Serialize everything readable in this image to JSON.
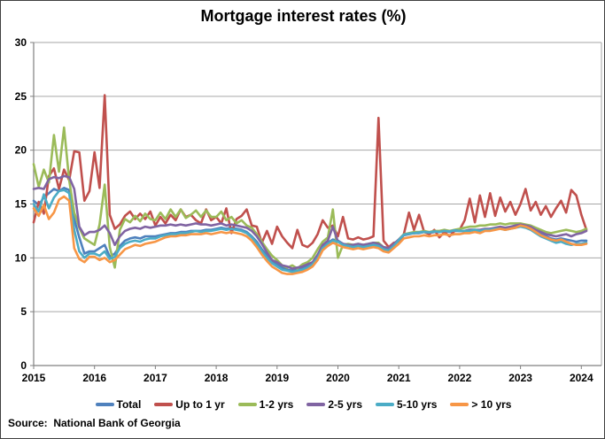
{
  "chart_data": {
    "type": "line",
    "title": "Mortgage interest rates (%)",
    "xlabel": "",
    "ylabel": "",
    "x_start": "2015-01",
    "points_per_year": 12,
    "x_tick_labels": [
      "2015",
      "2016",
      "2017",
      "2018",
      "2019",
      "2020",
      "2021",
      "2022",
      "2023",
      "2024"
    ],
    "y_ticks": [
      0,
      5,
      10,
      15,
      20,
      25,
      30
    ],
    "ylim": [
      0,
      30
    ],
    "grid": "horizontal",
    "legend_position": "bottom",
    "series": [
      {
        "name": "Total",
        "color": "#4F81BD",
        "values": [
          15.3,
          14.9,
          15.6,
          16.0,
          16.4,
          16.2,
          16.5,
          16.3,
          13.6,
          11.9,
          10.4,
          10.6,
          10.6,
          10.9,
          11.2,
          10.1,
          10.4,
          11.1,
          11.6,
          11.8,
          11.9,
          11.8,
          12.0,
          12.0,
          12.0,
          12.1,
          12.2,
          12.3,
          12.3,
          12.4,
          12.4,
          12.5,
          12.5,
          12.5,
          12.6,
          12.6,
          12.7,
          12.8,
          12.7,
          12.8,
          12.7,
          12.6,
          12.4,
          12.0,
          11.5,
          10.8,
          10.2,
          9.7,
          9.4,
          9.1,
          8.9,
          8.8,
          8.9,
          9.0,
          9.2,
          9.5,
          10.2,
          11.0,
          11.4,
          11.7,
          11.6,
          11.3,
          11.2,
          11.1,
          11.2,
          11.1,
          11.2,
          11.3,
          11.2,
          10.9,
          10.8,
          11.2,
          11.6,
          12.1,
          12.2,
          12.3,
          12.3,
          12.4,
          12.3,
          12.4,
          12.4,
          12.5,
          12.4,
          12.5,
          12.5,
          12.5,
          12.6,
          12.6,
          12.5,
          12.6,
          12.7,
          12.7,
          12.8,
          12.7,
          12.8,
          12.9,
          13.0,
          12.9,
          12.7,
          12.4,
          12.2,
          12.0,
          11.8,
          11.7,
          11.8,
          11.7,
          11.6,
          11.5,
          11.6,
          11.6
        ]
      },
      {
        "name": "Up to 1 yr",
        "color": "#C0504D",
        "values": [
          13.3,
          15.2,
          14.1,
          17.6,
          18.3,
          16.4,
          18.2,
          17.2,
          19.9,
          19.8,
          15.3,
          16.2,
          19.8,
          16.5,
          25.1,
          14.0,
          12.7,
          13.1,
          13.9,
          14.3,
          13.6,
          14.1,
          13.6,
          14.3,
          13.0,
          13.8,
          13.2,
          14.0,
          13.5,
          14.5,
          13.8,
          14.0,
          13.5,
          13.2,
          14.5,
          13.5,
          13.8,
          13.2,
          14.6,
          12.3,
          13.6,
          13.9,
          14.5,
          13.0,
          12.9,
          11.4,
          12.5,
          11.3,
          12.9,
          12.0,
          11.4,
          10.9,
          12.6,
          11.2,
          11.0,
          11.4,
          12.2,
          13.5,
          12.8,
          13.0,
          12.0,
          13.8,
          11.8,
          11.7,
          11.9,
          11.7,
          11.8,
          12.0,
          23.0,
          11.6,
          11.0,
          11.4,
          11.5,
          12.2,
          14.2,
          12.6,
          14.0,
          12.4,
          12.2,
          12.6,
          11.9,
          12.4,
          12.0,
          12.5,
          12.6,
          13.5,
          15.5,
          13.3,
          15.8,
          13.8,
          16.0,
          13.9,
          15.6,
          14.3,
          15.2,
          14.0,
          15.0,
          16.4,
          14.4,
          15.2,
          14.0,
          14.8,
          13.8,
          14.6,
          15.3,
          14.2,
          16.3,
          15.8,
          14.0,
          12.6
        ]
      },
      {
        "name": "1-2 yrs",
        "color": "#9BBB59",
        "values": [
          18.7,
          16.6,
          18.2,
          17.0,
          21.4,
          18.0,
          22.1,
          17.2,
          14.2,
          12.8,
          11.8,
          11.5,
          11.2,
          13.1,
          16.8,
          11.0,
          9.1,
          12.6,
          13.6,
          13.3,
          13.9,
          13.4,
          14.1,
          13.6,
          13.5,
          14.2,
          13.6,
          14.5,
          13.8,
          14.5,
          13.7,
          14.0,
          14.4,
          13.8,
          14.4,
          13.8,
          13.8,
          14.3,
          13.5,
          13.8,
          13.2,
          13.5,
          13.0,
          12.8,
          12.2,
          11.5,
          10.8,
          10.2,
          9.8,
          9.3,
          9.1,
          9.3,
          9.0,
          9.4,
          9.6,
          10.0,
          10.8,
          11.5,
          11.9,
          14.5,
          10.0,
          11.2,
          11.3,
          11.2,
          11.3,
          11.2,
          11.3,
          11.4,
          11.4,
          11.0,
          10.9,
          11.2,
          11.7,
          12.2,
          12.3,
          12.4,
          12.4,
          12.5,
          12.4,
          12.5,
          12.5,
          12.6,
          12.5,
          12.6,
          12.7,
          12.8,
          12.9,
          12.9,
          13.0,
          13.0,
          13.1,
          13.1,
          13.2,
          13.1,
          13.2,
          13.2,
          13.2,
          13.1,
          13.0,
          12.8,
          12.6,
          12.4,
          12.3,
          12.4,
          12.5,
          12.6,
          12.5,
          12.4,
          12.5,
          12.7
        ]
      },
      {
        "name": "2-5 yrs",
        "color": "#8064A2",
        "values": [
          16.4,
          16.5,
          16.4,
          17.3,
          17.5,
          17.4,
          17.6,
          17.5,
          16.4,
          12.9,
          12.1,
          12.4,
          12.4,
          12.6,
          13.0,
          12.3,
          11.2,
          12.0,
          12.5,
          12.7,
          12.8,
          12.7,
          12.9,
          12.8,
          12.9,
          13.0,
          13.0,
          13.1,
          13.0,
          13.1,
          13.0,
          13.1,
          13.2,
          13.1,
          13.1,
          13.0,
          13.1,
          13.2,
          13.0,
          13.1,
          13.0,
          12.9,
          12.8,
          12.5,
          12.0,
          11.3,
          10.5,
          9.8,
          9.6,
          9.3,
          9.2,
          9.0,
          9.1,
          9.2,
          9.4,
          9.6,
          10.3,
          11.2,
          11.6,
          12.9,
          11.5,
          11.3,
          11.2,
          11.2,
          11.3,
          11.2,
          11.3,
          11.4,
          11.3,
          11.0,
          10.9,
          11.3,
          11.7,
          12.15,
          12.25,
          12.3,
          12.35,
          12.4,
          12.35,
          12.45,
          12.4,
          12.5,
          12.45,
          12.55,
          12.5,
          12.5,
          12.6,
          12.6,
          12.6,
          12.7,
          12.7,
          12.8,
          12.9,
          12.8,
          12.9,
          13.0,
          13.1,
          13.0,
          12.9,
          12.6,
          12.4,
          12.2,
          12.1,
          12.0,
          12.1,
          12.2,
          12.0,
          12.2,
          12.3,
          12.5
        ]
      },
      {
        "name": "5-10 yrs",
        "color": "#4BACC6",
        "values": [
          15.0,
          14.3,
          15.9,
          14.6,
          15.6,
          16.2,
          16.3,
          16.0,
          12.6,
          10.6,
          10.0,
          10.4,
          10.4,
          10.2,
          10.6,
          9.9,
          10.1,
          10.9,
          11.3,
          11.5,
          11.6,
          11.5,
          11.7,
          11.8,
          11.8,
          12.0,
          12.1,
          12.2,
          12.2,
          12.3,
          12.3,
          12.4,
          12.5,
          12.4,
          12.5,
          12.5,
          12.6,
          12.7,
          12.6,
          12.7,
          12.6,
          12.5,
          12.3,
          11.9,
          11.3,
          10.6,
          10.0,
          9.5,
          9.2,
          8.9,
          8.8,
          8.7,
          8.8,
          8.9,
          9.1,
          9.4,
          10.0,
          10.9,
          11.3,
          11.6,
          11.5,
          11.2,
          11.1,
          11.0,
          11.1,
          11.0,
          11.1,
          11.2,
          11.1,
          10.8,
          10.7,
          11.1,
          11.65,
          12.15,
          12.25,
          12.3,
          12.35,
          12.4,
          12.35,
          12.45,
          12.4,
          12.5,
          12.45,
          12.55,
          12.5,
          12.5,
          12.5,
          12.6,
          12.5,
          12.6,
          12.6,
          12.7,
          12.7,
          12.6,
          12.7,
          12.8,
          12.9,
          12.8,
          12.6,
          12.3,
          12.0,
          11.8,
          11.6,
          11.4,
          11.5,
          11.3,
          11.2,
          11.3,
          11.3,
          11.4
        ]
      },
      {
        "name": "> 10 yrs",
        "color": "#F79646",
        "values": [
          14.6,
          13.9,
          14.9,
          13.6,
          14.2,
          15.4,
          15.7,
          15.3,
          10.9,
          9.9,
          9.6,
          10.1,
          10.1,
          9.8,
          10.0,
          9.6,
          9.8,
          10.3,
          10.8,
          11.0,
          11.2,
          11.1,
          11.3,
          11.4,
          11.5,
          11.7,
          11.9,
          12.0,
          12.0,
          12.1,
          12.1,
          12.2,
          12.2,
          12.2,
          12.3,
          12.2,
          12.3,
          12.4,
          12.3,
          12.4,
          12.3,
          12.2,
          12.0,
          11.6,
          11.0,
          10.3,
          9.7,
          9.2,
          8.9,
          8.6,
          8.5,
          8.5,
          8.6,
          8.7,
          8.9,
          9.2,
          9.8,
          10.7,
          11.1,
          11.4,
          11.2,
          11.0,
          10.9,
          10.8,
          10.9,
          10.8,
          10.9,
          11.0,
          10.9,
          10.6,
          10.5,
          10.9,
          11.3,
          11.8,
          11.9,
          12.0,
          12.0,
          12.1,
          12.0,
          12.1,
          12.1,
          12.2,
          12.1,
          12.2,
          12.2,
          12.3,
          12.3,
          12.4,
          12.3,
          12.5,
          12.5,
          12.6,
          12.7,
          12.6,
          12.7,
          12.8,
          13.0,
          12.9,
          12.7,
          12.4,
          12.1,
          11.9,
          11.7,
          11.6,
          11.7,
          11.5,
          11.3,
          11.2,
          11.2,
          11.3
        ]
      }
    ]
  },
  "footer": {
    "source": "Source:  National Bank of Georgia"
  },
  "style_colors": {
    "gridline": "#A6A6A6",
    "axis": "#808080",
    "tick_text": "#000000",
    "frame": "#3F3F3F"
  }
}
